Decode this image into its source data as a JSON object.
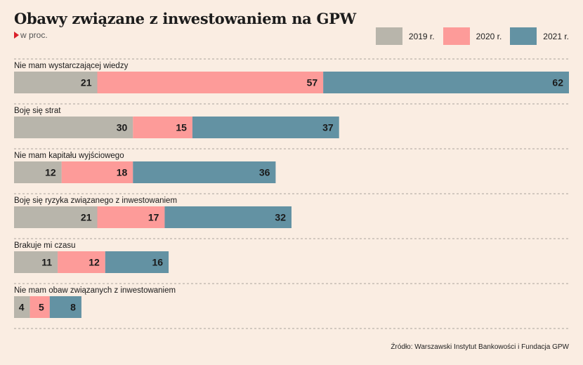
{
  "title": "Obawy związane z inwestowaniem na GPW",
  "subtitle": "w proc.",
  "source": "Źródło: Warszawski Instytut Bankowości i Fundacja GPW",
  "chart_data": {
    "type": "bar",
    "orientation": "horizontal",
    "stacked": true,
    "legend_position": "top-right",
    "categories": [
      "Nie mam wystarczającej wiedzy",
      "Boję się strat",
      "Nie mam kapitału wyjściowego",
      "Boję się ryzyka związanego z inwestowaniem",
      "Brakuje mi czasu",
      "Nie mam obaw związanych z inwestowaniem"
    ],
    "series": [
      {
        "name": "2019 r.",
        "color": "#b8b5ab",
        "values": [
          21,
          30,
          12,
          21,
          11,
          4
        ]
      },
      {
        "name": "2020 r.",
        "color": "#fd9b99",
        "values": [
          57,
          15,
          18,
          17,
          12,
          5
        ]
      },
      {
        "name": "2021 r.",
        "color": "#6392a3",
        "values": [
          62,
          37,
          36,
          32,
          16,
          8
        ]
      }
    ],
    "xlim": [
      0,
      140
    ],
    "grid": false
  }
}
